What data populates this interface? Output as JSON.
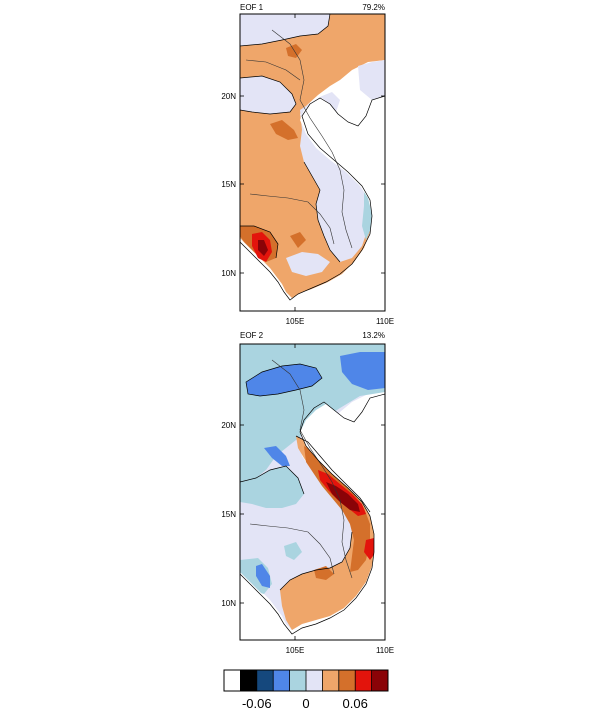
{
  "colors": {
    "c_white": "#ffffff",
    "c_black": "#000000",
    "c_navy": "#15487d",
    "c_blue": "#4f86e8",
    "c_lightblue": "#aad4e0",
    "c_lavender": "#e3e4f6",
    "c_lightorange": "#efa66a",
    "c_orange": "#d4702b",
    "c_red": "#e3140c",
    "c_darkred": "#8a0307",
    "coast": "#000000"
  },
  "panels": [
    {
      "title": "EOF 1",
      "percent": "79.2%",
      "ytick_labels": [
        "20N",
        "15N",
        "10N"
      ],
      "xtick_labels": [
        "105E",
        "110E"
      ]
    },
    {
      "title": "EOF 2",
      "percent": "13.2%",
      "ytick_labels": [
        "20N",
        "15N",
        "10N"
      ],
      "xtick_labels": [
        "105E",
        "110E"
      ]
    }
  ],
  "colorbar": {
    "labels": [
      "-0.06",
      "0",
      "0.06"
    ],
    "swatches": [
      "c_white",
      "c_black",
      "c_navy",
      "c_blue",
      "c_lightblue",
      "c_lavender",
      "c_lightorange",
      "c_orange",
      "c_red",
      "c_darkred"
    ]
  }
}
